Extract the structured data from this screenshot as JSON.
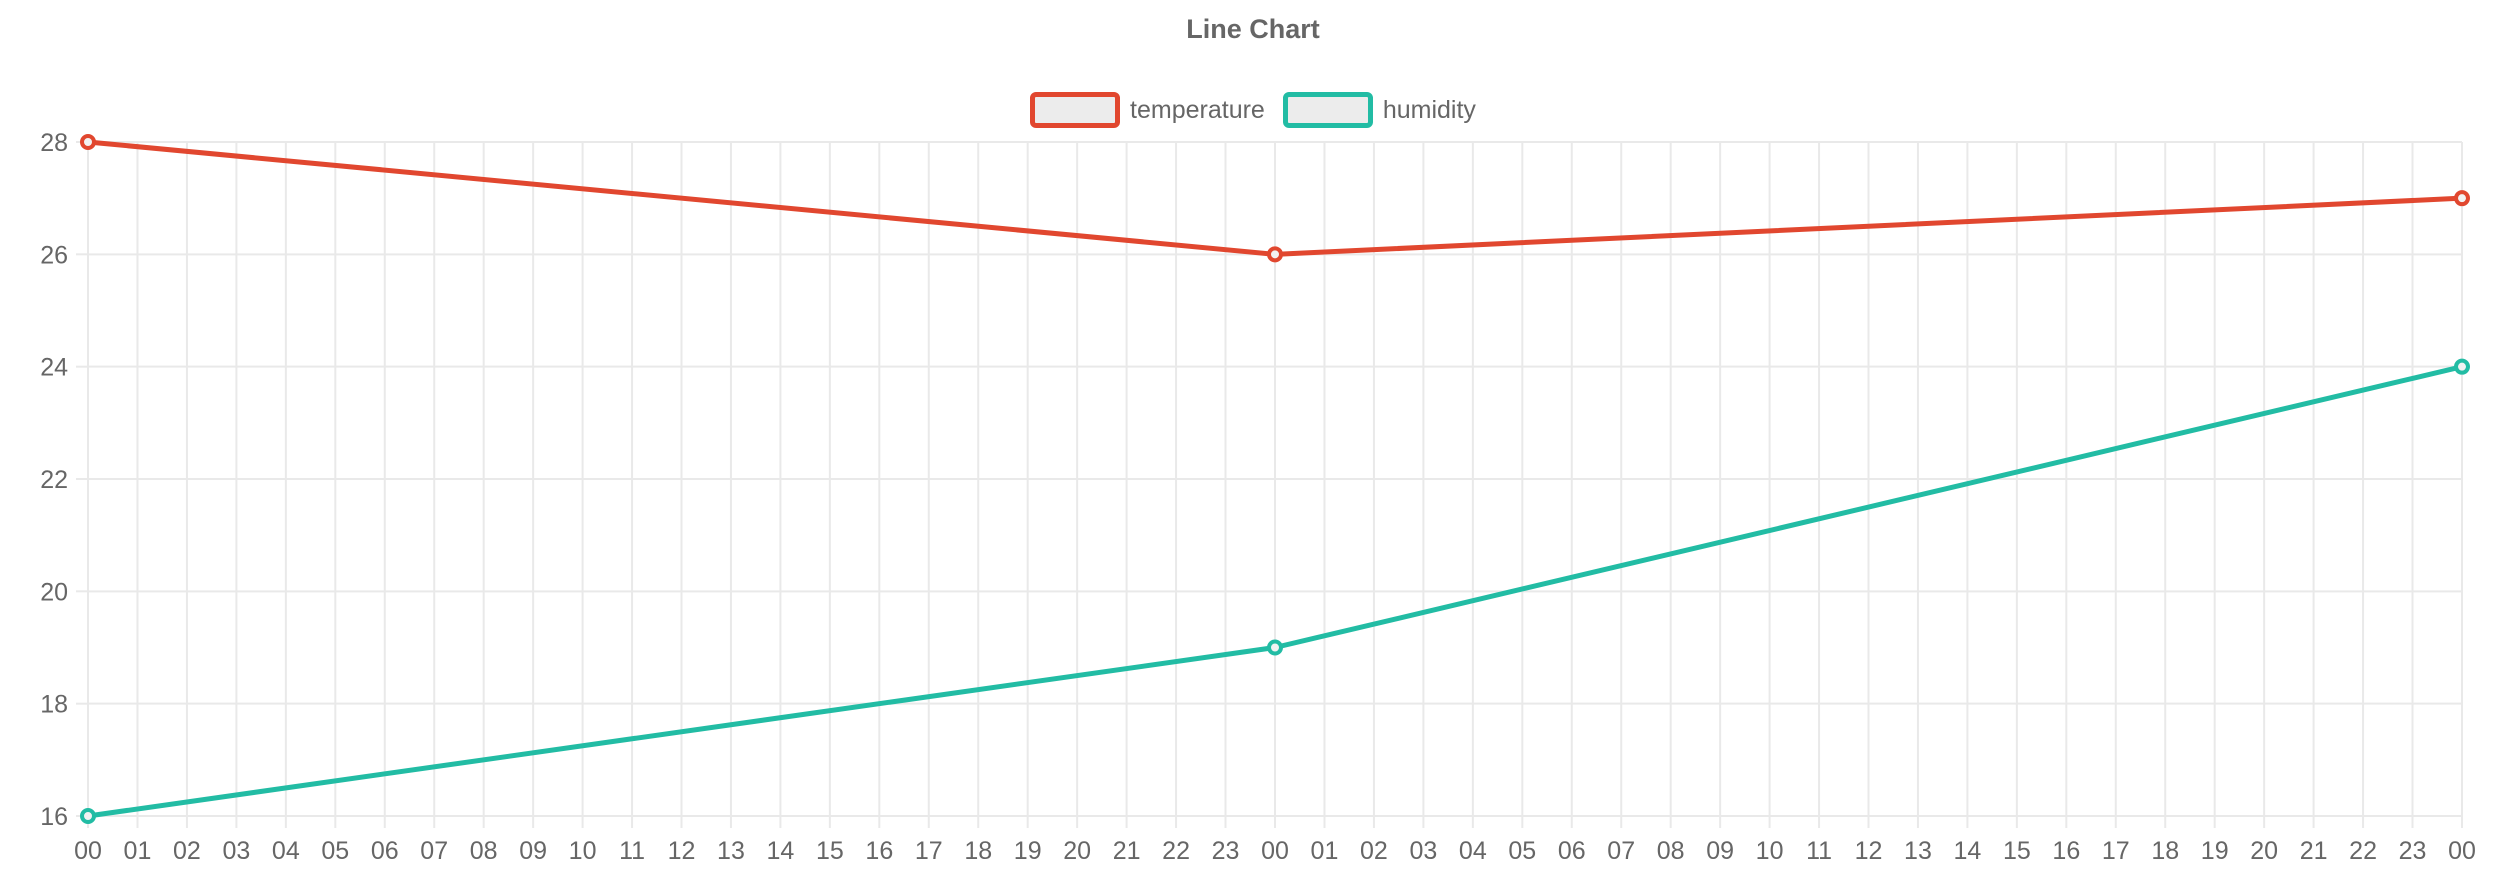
{
  "page": {
    "background": "#ffffff"
  },
  "chart_data": {
    "type": "line",
    "title": "Line Chart",
    "legend": {
      "position": "top"
    },
    "x_axis": {
      "tick_labels": [
        "00",
        "01",
        "02",
        "03",
        "04",
        "05",
        "06",
        "07",
        "08",
        "09",
        "10",
        "11",
        "12",
        "13",
        "14",
        "15",
        "16",
        "17",
        "18",
        "19",
        "20",
        "21",
        "22",
        "23",
        "00",
        "01",
        "02",
        "03",
        "04",
        "05",
        "06",
        "07",
        "08",
        "09",
        "10",
        "11",
        "12",
        "13",
        "14",
        "15",
        "16",
        "17",
        "18",
        "19",
        "20",
        "21",
        "22",
        "23",
        "00"
      ]
    },
    "y_axis": {
      "tick_labels": [
        "16",
        "18",
        "20",
        "22",
        "24",
        "26",
        "28"
      ],
      "ticks": [
        16,
        18,
        20,
        22,
        24,
        26,
        28
      ],
      "min": 16,
      "max": 28
    },
    "series": [
      {
        "name": "temperature",
        "color": "#e1472f",
        "points": [
          {
            "x_index": 0,
            "x_label": "00",
            "value": 28
          },
          {
            "x_index": 24,
            "x_label": "00",
            "value": 26
          },
          {
            "x_index": 48,
            "x_label": "00",
            "value": 27
          }
        ]
      },
      {
        "name": "humidity",
        "color": "#22bca4",
        "points": [
          {
            "x_index": 0,
            "x_label": "00",
            "value": 16
          },
          {
            "x_index": 24,
            "x_label": "00",
            "value": 19
          },
          {
            "x_index": 48,
            "x_label": "00",
            "value": 24
          }
        ]
      }
    ],
    "colors": {
      "grid": "#e9e9e9",
      "axis_text": "#666666",
      "title_text": "#666666",
      "legend_marker_fill": "#ececec",
      "point_fill": "#f2f2f2"
    }
  }
}
